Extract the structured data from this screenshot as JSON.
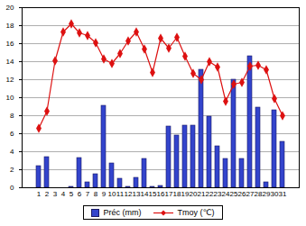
{
  "chart_data": {
    "type": "bar",
    "categories": [
      "1",
      "2",
      "3",
      "4",
      "5",
      "6",
      "7",
      "8",
      "9",
      "10",
      "11",
      "12",
      "13",
      "14",
      "15",
      "16",
      "17",
      "18",
      "19",
      "20",
      "21",
      "22",
      "23",
      "24",
      "25",
      "26",
      "27",
      "28",
      "29",
      "30",
      "31"
    ],
    "series": [
      {
        "name": "Préc (mm)",
        "type": "bar",
        "color": "#3344cc",
        "values": [
          2.4,
          3.4,
          0,
          0,
          0.1,
          3.3,
          0.6,
          1.5,
          9.1,
          2.7,
          1.0,
          0.1,
          1.1,
          3.2,
          0.1,
          0.2,
          6.8,
          5.8,
          6.9,
          6.9,
          13.1,
          7.9,
          4.6,
          3.2,
          12.0,
          3.2,
          14.6,
          8.9,
          0.6,
          8.6,
          5.1
        ]
      },
      {
        "name": "Tmoy (℃)",
        "type": "line",
        "color": "#dd1111",
        "marker": "diamond",
        "values": [
          6.6,
          8.5,
          14.1,
          17.3,
          18.2,
          17.2,
          16.9,
          16.1,
          14.3,
          13.8,
          14.9,
          16.3,
          17.3,
          15.4,
          12.8,
          16.6,
          15.5,
          16.7,
          14.6,
          12.7,
          12.0,
          14.0,
          13.4,
          9.6,
          11.5,
          11.7,
          13.5,
          13.6,
          13.1,
          9.9,
          8.0
        ]
      }
    ],
    "ylim": [
      0,
      20
    ],
    "yticks": [
      0,
      2,
      4,
      6,
      8,
      10,
      12,
      14,
      16,
      18,
      20
    ],
    "grid": true,
    "legend": "bottom"
  }
}
